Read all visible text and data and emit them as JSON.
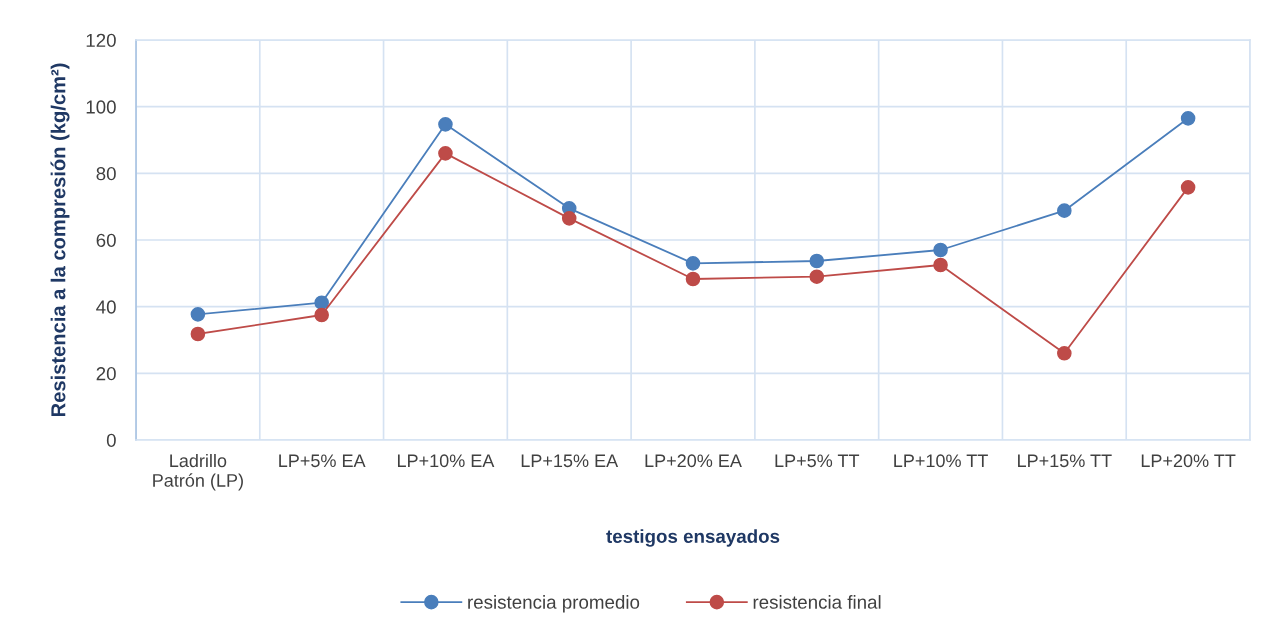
{
  "chart_data": {
    "type": "line",
    "xlabel": "testigos ensayados",
    "ylabel": "Resistencia a la compresión (kg/cm²)",
    "categories": [
      "Ladrillo\nPatrón (LP)",
      "LP+5% EA",
      "LP+10% EA",
      "LP+15% EA",
      "LP+20% EA",
      "LP+5% TT",
      "LP+10% TT",
      "LP+15% TT",
      "LP+20% TT"
    ],
    "series": [
      {
        "name": "resistencia promedio",
        "color": "#4a7ebb",
        "values": [
          37.7,
          41.2,
          94.7,
          69.5,
          53.0,
          53.7,
          57.0,
          68.8,
          96.5
        ]
      },
      {
        "name": "resistencia final",
        "color": "#be4b48",
        "values": [
          31.8,
          37.5,
          86.0,
          66.5,
          48.3,
          49.0,
          52.5,
          26.0,
          75.8
        ]
      }
    ],
    "ylim": [
      0,
      120
    ],
    "yticks": [
      0,
      20,
      40,
      60,
      80,
      100,
      120
    ],
    "grid": true,
    "legend": "bottom",
    "marker": "circle",
    "line_style": "solid"
  }
}
